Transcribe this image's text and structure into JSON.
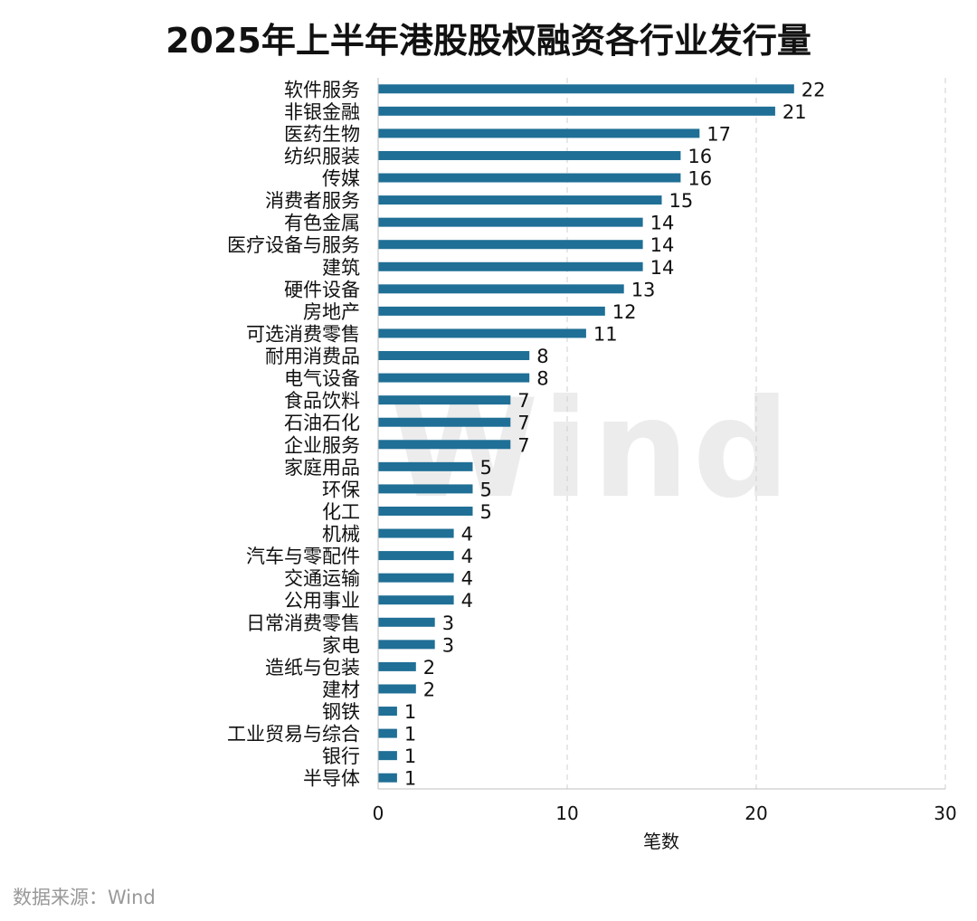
{
  "chart_data": {
    "type": "bar",
    "orientation": "horizontal",
    "title": "2025年上半年港股股权融资各行业发行量",
    "xlabel": "笔数",
    "ylabel": "",
    "xlim": [
      0,
      30
    ],
    "xticks": [
      0,
      10,
      20,
      30
    ],
    "grid": "vertical dashed",
    "categories": [
      "软件服务",
      "非银金融",
      "医药生物",
      "纺织服装",
      "传媒",
      "消费者服务",
      "有色金属",
      "医疗设备与服务",
      "建筑",
      "硬件设备",
      "房地产",
      "可选消费零售",
      "耐用消费品",
      "电气设备",
      "食品饮料",
      "石油石化",
      "企业服务",
      "家庭用品",
      "环保",
      "化工",
      "机械",
      "汽车与零配件",
      "交通运输",
      "公用事业",
      "日常消费零售",
      "家电",
      "造纸与包装",
      "建材",
      "钢铁",
      "工业贸易与综合",
      "银行",
      "半导体"
    ],
    "values": [
      22,
      21,
      17,
      16,
      16,
      15,
      14,
      14,
      14,
      13,
      12,
      11,
      8,
      8,
      7,
      7,
      7,
      5,
      5,
      5,
      4,
      4,
      4,
      4,
      3,
      3,
      2,
      2,
      1,
      1,
      1,
      1
    ],
    "bar_color": "#1f6f96"
  },
  "watermark": "Wind",
  "source": "数据来源：Wind"
}
